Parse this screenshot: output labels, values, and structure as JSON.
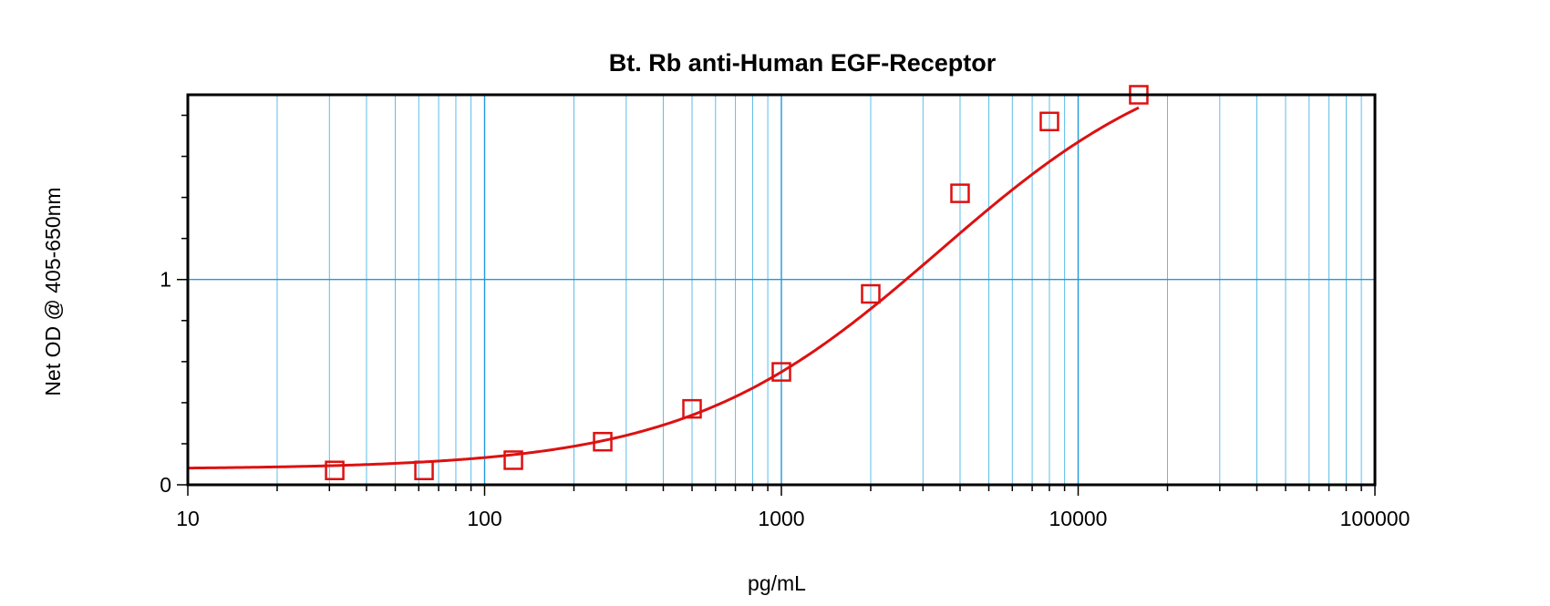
{
  "chart_data": {
    "type": "scatter",
    "title": "Bt. Rb anti-Human EGF-Receptor",
    "xlabel": "pg/mL",
    "ylabel": "Net OD @ 405-650nm",
    "x_scale": "log",
    "xlim": [
      10,
      100000
    ],
    "ylim": [
      0,
      1.9
    ],
    "x_tick_labels": [
      "10",
      "100",
      "1000",
      "10000",
      "100000"
    ],
    "x_ticks": [
      10,
      100,
      1000,
      10000,
      100000
    ],
    "y_tick_labels": [
      "0",
      "1"
    ],
    "y_ticks": [
      0,
      1
    ],
    "grid": true,
    "colors": {
      "series": "#dd1111",
      "grid_major": "#1f9ad8",
      "grid_minor": "#5cbde8",
      "axes": "#000000"
    },
    "series": [
      {
        "marker": "square",
        "x": [
          31.25,
          62.5,
          125,
          250,
          500,
          1000,
          2000,
          4000,
          8000,
          16000
        ],
        "y": [
          0.07,
          0.07,
          0.12,
          0.21,
          0.37,
          0.55,
          0.93,
          1.42,
          1.77,
          1.9
        ]
      }
    ],
    "fit_curve": {
      "type": "4PL",
      "bottom": 0.076,
      "top": 2.2,
      "ec50": 3400,
      "hill": 1.02
    }
  }
}
